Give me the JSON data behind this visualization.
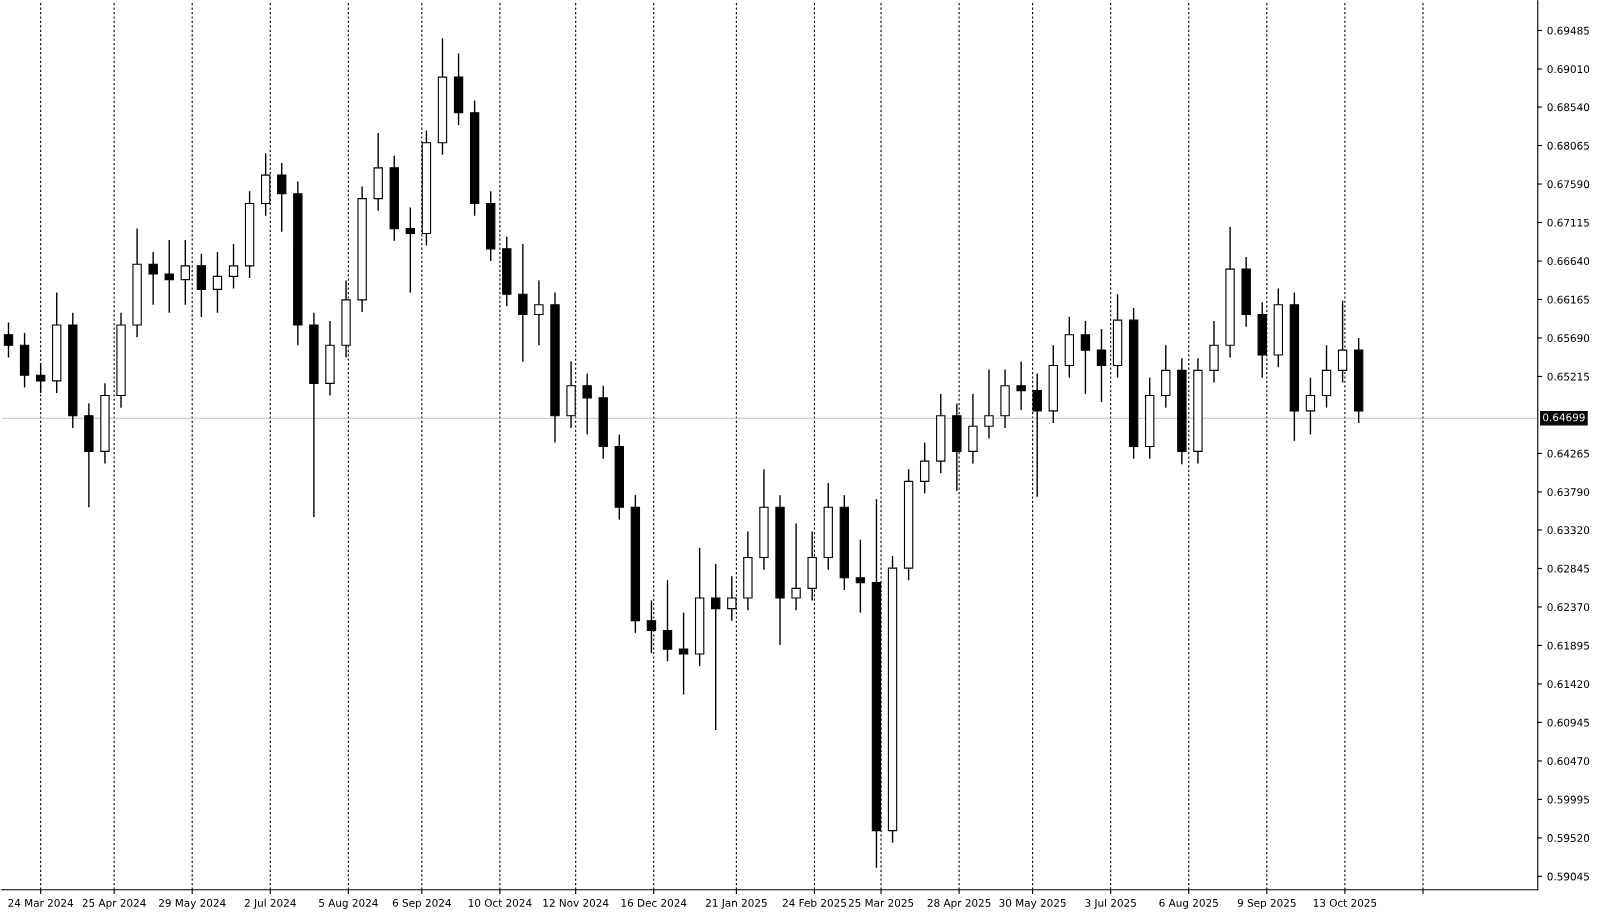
{
  "chart_data": {
    "type": "candlestick",
    "color": "#000000",
    "x": [
      "2024-03-10",
      "2024-03-17",
      "2024-03-24",
      "2024-03-31",
      "2024-04-07",
      "2024-04-14",
      "2024-04-21",
      "2024-04-28",
      "2024-05-05",
      "2024-05-12",
      "2024-05-19",
      "2024-05-26",
      "2024-06-02",
      "2024-06-09",
      "2024-06-16",
      "2024-06-23",
      "2024-06-30",
      "2024-07-07",
      "2024-07-14",
      "2024-07-21",
      "2024-07-28",
      "2024-08-04",
      "2024-08-11",
      "2024-08-18",
      "2024-08-25",
      "2024-09-01",
      "2024-09-08",
      "2024-09-15",
      "2024-09-22",
      "2024-09-29",
      "2024-10-06",
      "2024-10-13",
      "2024-10-20",
      "2024-10-27",
      "2024-11-03",
      "2024-11-10",
      "2024-11-17",
      "2024-11-24",
      "2024-12-01",
      "2024-12-08",
      "2024-12-15",
      "2024-12-22",
      "2024-12-29",
      "2025-01-05",
      "2025-01-12",
      "2025-01-19",
      "2025-01-26",
      "2025-02-02",
      "2025-02-09",
      "2025-02-16",
      "2025-02-23",
      "2025-03-02",
      "2025-03-09",
      "2025-03-16",
      "2025-03-23",
      "2025-03-30",
      "2025-04-06",
      "2025-04-13",
      "2025-04-20",
      "2025-04-27",
      "2025-05-04",
      "2025-05-11",
      "2025-05-18",
      "2025-05-25",
      "2025-06-01",
      "2025-06-08",
      "2025-06-15",
      "2025-06-22",
      "2025-06-29",
      "2025-07-06",
      "2025-07-13",
      "2025-07-20",
      "2025-07-27",
      "2025-08-03",
      "2025-08-10",
      "2025-08-17",
      "2025-08-24",
      "2025-08-31",
      "2025-09-07",
      "2025-09-14",
      "2025-09-21",
      "2025-09-28",
      "2025-10-05",
      "2025-10-12",
      "2025-10-19"
    ],
    "ohlc": [
      [
        0.6573,
        0.6588,
        0.6545,
        0.656
      ],
      [
        0.656,
        0.6575,
        0.6508,
        0.6523
      ],
      [
        0.6523,
        0.6538,
        0.6501,
        0.6516
      ],
      [
        0.6516,
        0.6625,
        0.6501,
        0.6585
      ],
      [
        0.6585,
        0.66,
        0.6458,
        0.6473
      ],
      [
        0.6473,
        0.6488,
        0.636,
        0.6429
      ],
      [
        0.6429,
        0.6513,
        0.6414,
        0.6498
      ],
      [
        0.6498,
        0.66,
        0.6483,
        0.6585
      ],
      [
        0.6585,
        0.6704,
        0.657,
        0.666
      ],
      [
        0.666,
        0.6675,
        0.661,
        0.6648
      ],
      [
        0.6648,
        0.669,
        0.66,
        0.6641
      ],
      [
        0.6641,
        0.669,
        0.661,
        0.6658
      ],
      [
        0.6658,
        0.6673,
        0.6595,
        0.6629
      ],
      [
        0.6629,
        0.6675,
        0.66,
        0.6645
      ],
      [
        0.6645,
        0.6685,
        0.663,
        0.6658
      ],
      [
        0.6658,
        0.675,
        0.6643,
        0.6735
      ],
      [
        0.6735,
        0.6797,
        0.672,
        0.677
      ],
      [
        0.677,
        0.6785,
        0.67,
        0.6747
      ],
      [
        0.6747,
        0.6762,
        0.656,
        0.6585
      ],
      [
        0.6585,
        0.66,
        0.6348,
        0.6513
      ],
      [
        0.6513,
        0.659,
        0.6498,
        0.656
      ],
      [
        0.656,
        0.664,
        0.6545,
        0.6616
      ],
      [
        0.6616,
        0.6756,
        0.6601,
        0.6741
      ],
      [
        0.6741,
        0.6822,
        0.6726,
        0.6779
      ],
      [
        0.6779,
        0.6794,
        0.6689,
        0.6704
      ],
      [
        0.6704,
        0.673,
        0.6625,
        0.6698
      ],
      [
        0.6698,
        0.6825,
        0.6683,
        0.681
      ],
      [
        0.681,
        0.6939,
        0.6795,
        0.6891
      ],
      [
        0.6891,
        0.692,
        0.6832,
        0.6847
      ],
      [
        0.6847,
        0.6862,
        0.672,
        0.6735
      ],
      [
        0.6735,
        0.675,
        0.6664,
        0.6679
      ],
      [
        0.6679,
        0.6694,
        0.6608,
        0.6623
      ],
      [
        0.6623,
        0.6685,
        0.654,
        0.6598
      ],
      [
        0.6598,
        0.664,
        0.656,
        0.661
      ],
      [
        0.661,
        0.6625,
        0.644,
        0.6473
      ],
      [
        0.6473,
        0.654,
        0.6458,
        0.651
      ],
      [
        0.651,
        0.6525,
        0.645,
        0.6495
      ],
      [
        0.6495,
        0.651,
        0.642,
        0.6435
      ],
      [
        0.6435,
        0.645,
        0.6345,
        0.636
      ],
      [
        0.636,
        0.6375,
        0.6205,
        0.622
      ],
      [
        0.622,
        0.6245,
        0.618,
        0.6208
      ],
      [
        0.6208,
        0.627,
        0.617,
        0.6185
      ],
      [
        0.6185,
        0.623,
        0.6129,
        0.6179
      ],
      [
        0.6179,
        0.631,
        0.6164,
        0.6248
      ],
      [
        0.6248,
        0.629,
        0.6085,
        0.6235
      ],
      [
        0.6235,
        0.6275,
        0.622,
        0.6248
      ],
      [
        0.6248,
        0.633,
        0.6233,
        0.6298
      ],
      [
        0.6298,
        0.6407,
        0.6283,
        0.636
      ],
      [
        0.636,
        0.6375,
        0.619,
        0.6248
      ],
      [
        0.6248,
        0.634,
        0.6233,
        0.626
      ],
      [
        0.626,
        0.633,
        0.6245,
        0.6298
      ],
      [
        0.6298,
        0.639,
        0.6283,
        0.636
      ],
      [
        0.636,
        0.6375,
        0.6258,
        0.6273
      ],
      [
        0.6273,
        0.632,
        0.623,
        0.6267
      ],
      [
        0.6267,
        0.637,
        0.5915,
        0.5961
      ],
      [
        0.5961,
        0.63,
        0.5946,
        0.6285
      ],
      [
        0.6285,
        0.6407,
        0.627,
        0.6392
      ],
      [
        0.6392,
        0.644,
        0.6377,
        0.6417
      ],
      [
        0.6417,
        0.65,
        0.6402,
        0.6473
      ],
      [
        0.6473,
        0.6488,
        0.638,
        0.6429
      ],
      [
        0.6429,
        0.65,
        0.6414,
        0.646
      ],
      [
        0.646,
        0.653,
        0.6445,
        0.6473
      ],
      [
        0.6473,
        0.653,
        0.6458,
        0.651
      ],
      [
        0.651,
        0.654,
        0.648,
        0.6504
      ],
      [
        0.6504,
        0.6525,
        0.6373,
        0.6479
      ],
      [
        0.6479,
        0.656,
        0.6464,
        0.6535
      ],
      [
        0.6535,
        0.6595,
        0.652,
        0.6573
      ],
      [
        0.6573,
        0.659,
        0.65,
        0.6554
      ],
      [
        0.6554,
        0.658,
        0.649,
        0.6535
      ],
      [
        0.6535,
        0.6623,
        0.652,
        0.6591
      ],
      [
        0.6591,
        0.6606,
        0.642,
        0.6435
      ],
      [
        0.6435,
        0.652,
        0.642,
        0.6498
      ],
      [
        0.6498,
        0.656,
        0.6483,
        0.6529
      ],
      [
        0.6529,
        0.6544,
        0.6413,
        0.6429
      ],
      [
        0.6429,
        0.6544,
        0.6414,
        0.6529
      ],
      [
        0.6529,
        0.659,
        0.6514,
        0.656
      ],
      [
        0.656,
        0.6706,
        0.6545,
        0.6654
      ],
      [
        0.6654,
        0.6669,
        0.6583,
        0.6598
      ],
      [
        0.6598,
        0.6613,
        0.652,
        0.6548
      ],
      [
        0.6548,
        0.663,
        0.6533,
        0.661
      ],
      [
        0.661,
        0.6625,
        0.6442,
        0.6479
      ],
      [
        0.6479,
        0.652,
        0.645,
        0.6498
      ],
      [
        0.6498,
        0.656,
        0.6483,
        0.6529
      ],
      [
        0.6529,
        0.6615,
        0.6514,
        0.6554
      ],
      [
        0.6554,
        0.6569,
        0.6464,
        0.6479
      ]
    ],
    "xlim": [
      "2024-03-07",
      "2026-01-05"
    ],
    "xticks": [
      {
        "value": "2024-03-24",
        "label": "24 Mar 2024"
      },
      {
        "value": "2024-04-25",
        "label": "25 Apr 2024"
      },
      {
        "value": "2024-05-29",
        "label": "29 May 2024"
      },
      {
        "value": "2024-07-02",
        "label": "2 Jul 2024"
      },
      {
        "value": "2024-08-05",
        "label": "5 Aug 2024"
      },
      {
        "value": "2024-09-06",
        "label": "6 Sep 2024"
      },
      {
        "value": "2024-10-10",
        "label": "10 Oct 2024"
      },
      {
        "value": "2024-11-12",
        "label": "12 Nov 2024"
      },
      {
        "value": "2024-12-16",
        "label": "16 Dec 2024"
      },
      {
        "value": "2025-01-21",
        "label": "21 Jan 2025"
      },
      {
        "value": "2025-02-24",
        "label": "24 Feb 2025"
      },
      {
        "value": "2025-03-25",
        "label": "25 Mar 2025"
      },
      {
        "value": "2025-04-28",
        "label": "28 Apr 2025"
      },
      {
        "value": "2025-05-30",
        "label": "30 May 2025"
      },
      {
        "value": "2025-07-03",
        "label": "3 Jul 2025"
      },
      {
        "value": "2025-08-06",
        "label": "6 Aug 2025"
      },
      {
        "value": "2025-09-09",
        "label": "9 Sep 2025"
      },
      {
        "value": "2025-10-13",
        "label": "13 Oct 2025"
      },
      {
        "value": "2025-11-16",
        "label": null
      }
    ],
    "ylim": [
      0.5888,
      0.6985
    ],
    "yticks": [
      {
        "value": 0.69485,
        "label": "0.69485"
      },
      {
        "value": 0.6901,
        "label": "0.69010"
      },
      {
        "value": 0.6854,
        "label": "0.68540"
      },
      {
        "value": 0.68065,
        "label": "0.68065"
      },
      {
        "value": 0.6759,
        "label": "0.67590"
      },
      {
        "value": 0.67115,
        "label": "0.67115"
      },
      {
        "value": 0.6664,
        "label": "0.66640"
      },
      {
        "value": 0.66165,
        "label": "0.66165"
      },
      {
        "value": 0.6569,
        "label": "0.65690"
      },
      {
        "value": 0.65215,
        "label": "0.65215"
      },
      {
        "value": 0.64265,
        "label": "0.64265"
      },
      {
        "value": 0.6379,
        "label": "0.63790"
      },
      {
        "value": 0.6332,
        "label": "0.63320"
      },
      {
        "value": 0.62845,
        "label": "0.62845"
      },
      {
        "value": 0.6237,
        "label": "0.62370"
      },
      {
        "value": 0.61895,
        "label": "0.61895"
      },
      {
        "value": 0.6142,
        "label": "0.61420"
      },
      {
        "value": 0.60945,
        "label": "0.60945"
      },
      {
        "value": 0.6047,
        "label": "0.60470"
      },
      {
        "value": 0.59995,
        "label": "0.59995"
      },
      {
        "value": 0.5952,
        "label": "0.59520"
      },
      {
        "value": 0.59045,
        "label": "0.59045"
      }
    ],
    "grid": "x",
    "ref_lines": [
      {
        "axis": "y",
        "value": 0.64699,
        "label": "0.64699",
        "color": "#c0c0c0"
      }
    ]
  }
}
